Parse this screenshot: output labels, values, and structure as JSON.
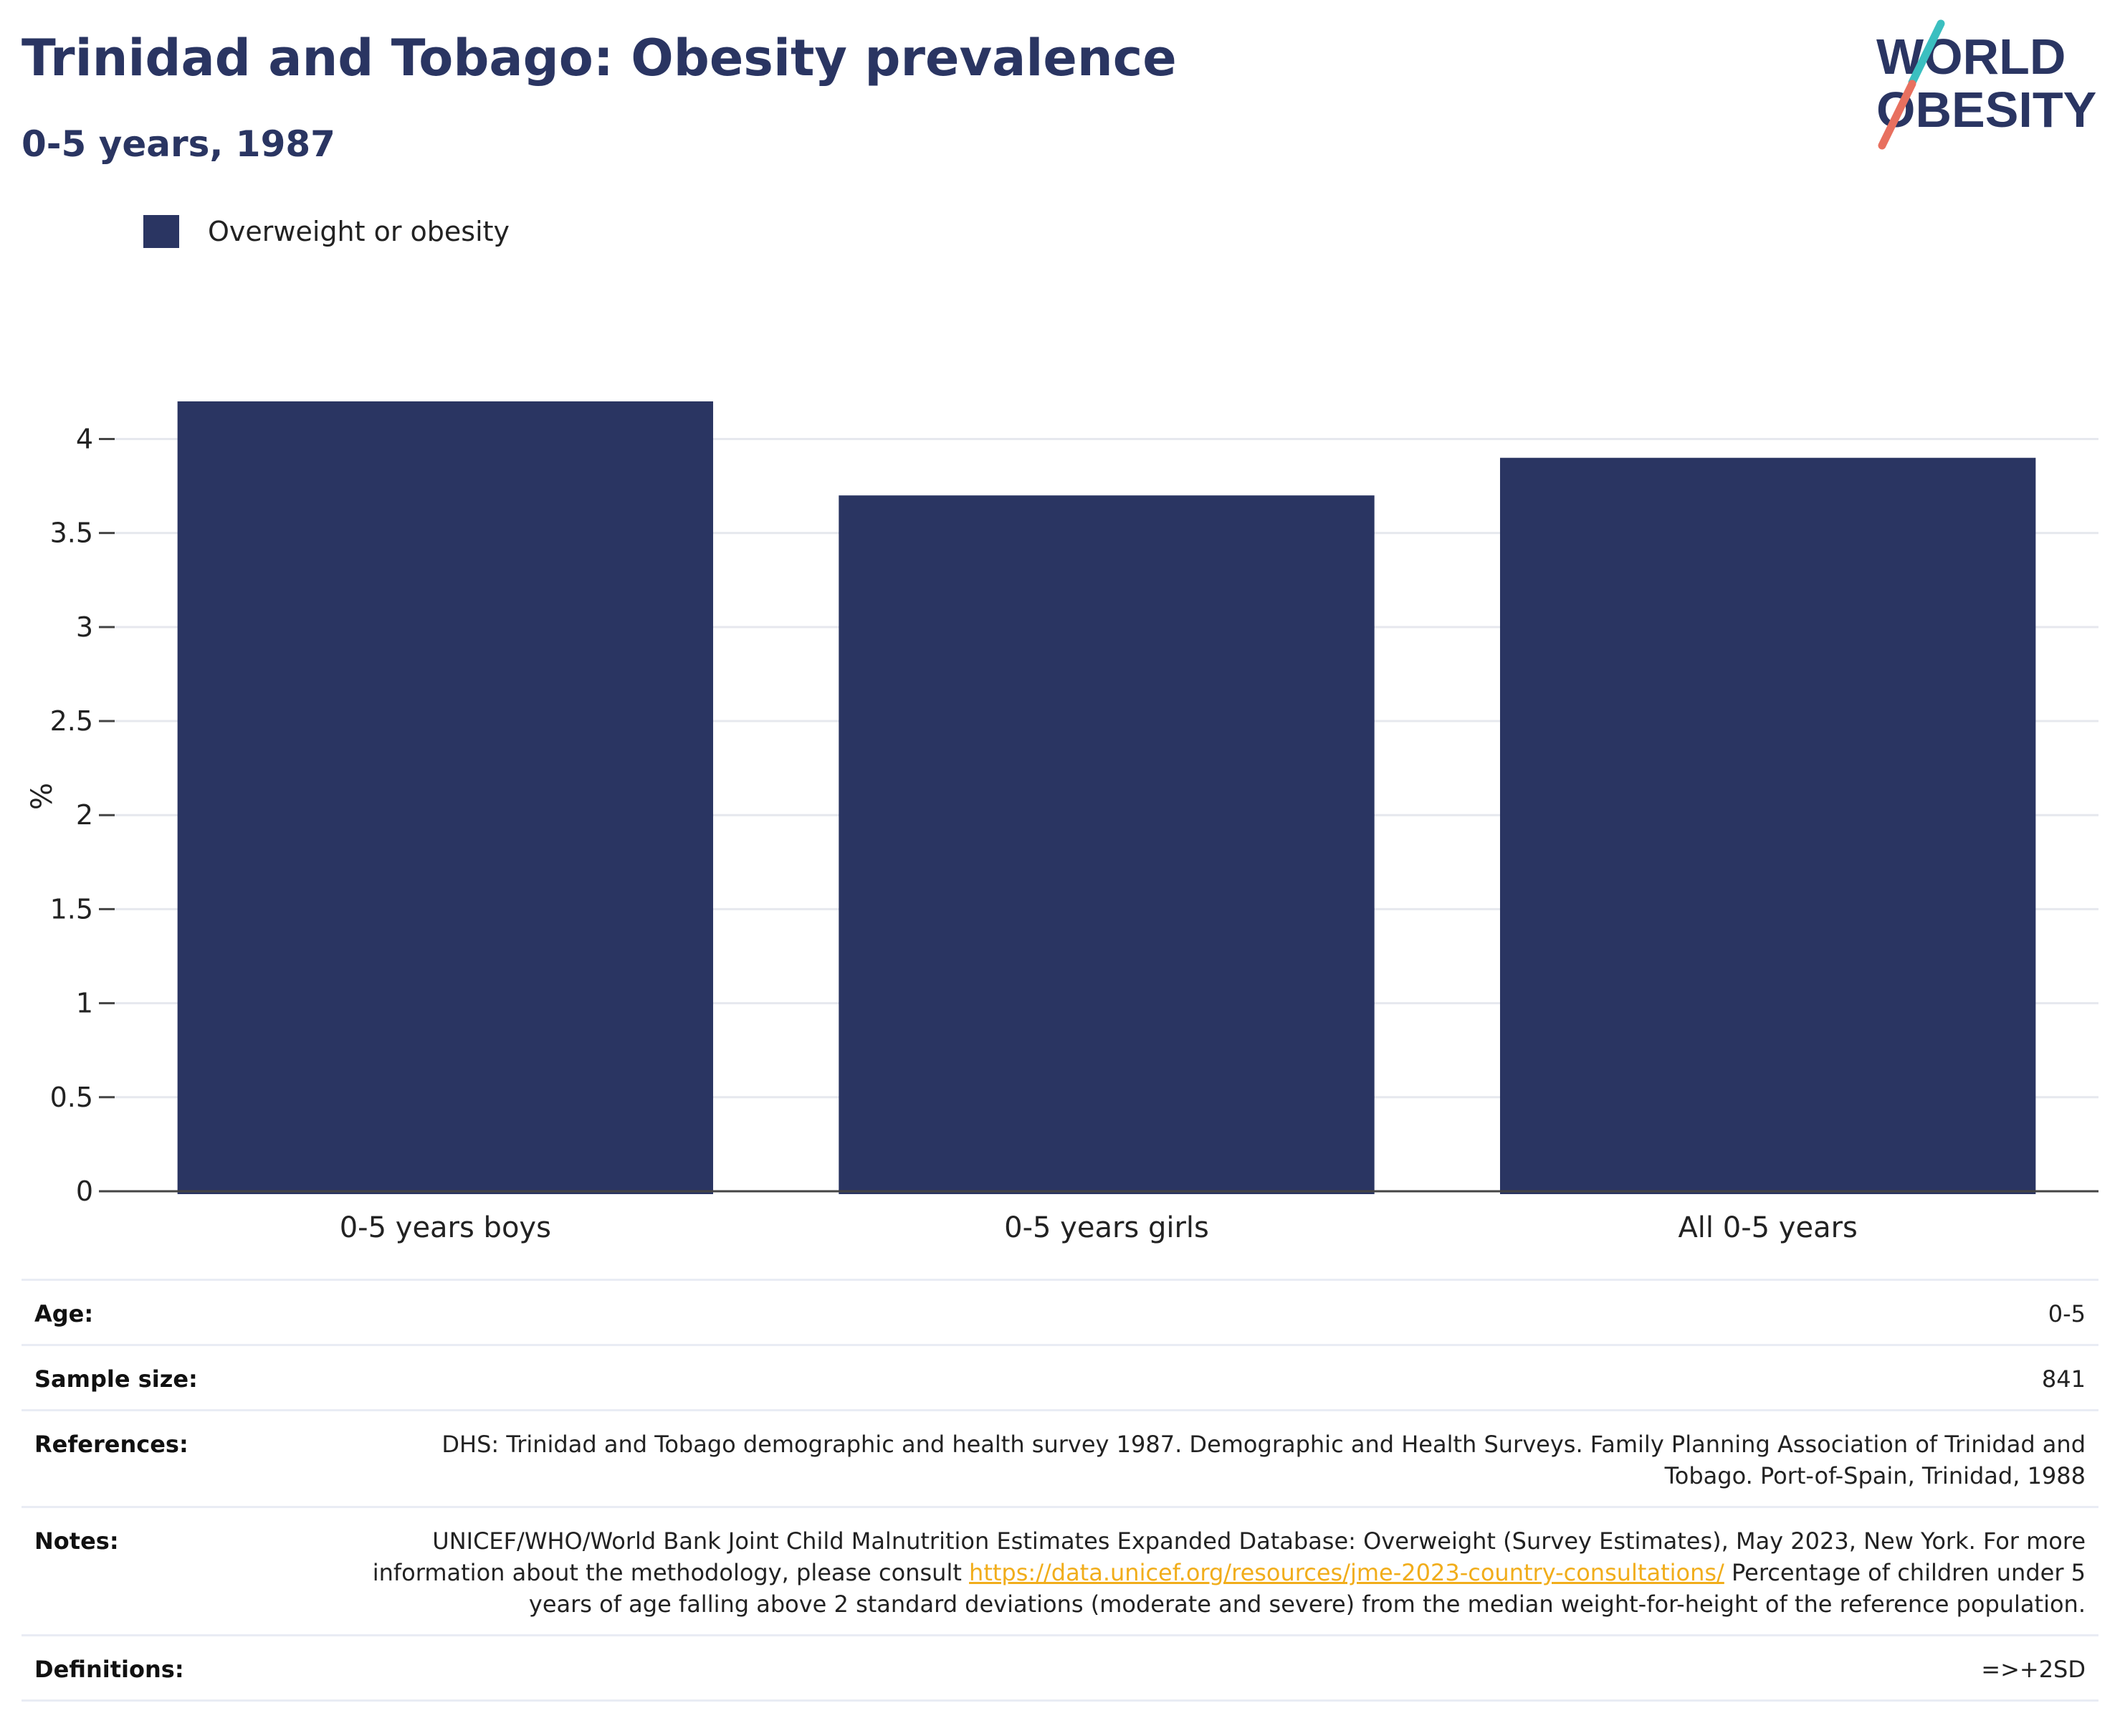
{
  "title": "Trinidad and Tobago: Obesity prevalence",
  "subtitle": "0-5 years, 1987",
  "logo": {
    "line1": "WORLD",
    "line2": "OBESITY",
    "color": "#2a3562",
    "slash_colors": [
      "#3bbfc0",
      "#e8705f"
    ]
  },
  "legend": {
    "label": "Overweight or obesity",
    "color": "#2a3562"
  },
  "chart_data": {
    "type": "bar",
    "categories": [
      "0-5 years boys",
      "0-5 years girls",
      "All 0-5 years"
    ],
    "series": [
      {
        "name": "Overweight or obesity",
        "values": [
          4.2,
          3.7,
          3.9
        ],
        "color": "#2a3562"
      }
    ],
    "ylabel": "%",
    "ylim": [
      0,
      4.2
    ],
    "yticks": [
      0,
      0.5,
      1,
      1.5,
      2,
      2.5,
      3,
      3.5,
      4
    ],
    "ytick_labels": [
      "0",
      "0.5",
      "1",
      "1.5",
      "2",
      "2.5",
      "3",
      "3.5",
      "4"
    ],
    "grid": true,
    "legend_position": "top-left"
  },
  "info": {
    "age_label": "Age:",
    "age_value": "0-5",
    "sample_label": "Sample size:",
    "sample_value": "841",
    "references_label": "References:",
    "references_value": "DHS: Trinidad and Tobago demographic and health survey 1987. Demographic and Health Surveys. Family Planning Association of Trinidad and Tobago. Port-of-Spain, Trinidad, 1988",
    "notes_label": "Notes:",
    "notes_text1": "UNICEF/WHO/World Bank Joint Child Malnutrition Estimates Expanded Database: Overweight (Survey Estimates), May 2023, New York. For more information about the methodology, please consult ",
    "notes_link": "https://data.unicef.org/resources/jme-2023-country-consultations/",
    "notes_text2": "Percentage of children under 5 years of age falling above 2 standard deviations (moderate and severe) from the median weight-for-height of the reference population.",
    "definitions_label": "Definitions:",
    "definitions_value": "=>+2SD"
  }
}
